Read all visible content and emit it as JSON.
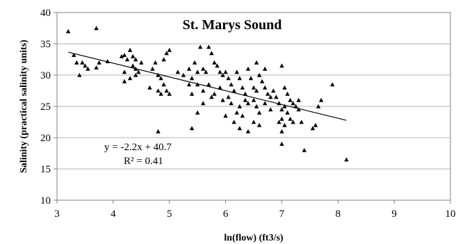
{
  "chart_data": {
    "type": "scatter",
    "title": "St. Marys Sound",
    "xlabel": "ln(flow) (ft3/s)",
    "ylabel": "Salinity (practical salinity units)",
    "xlim": [
      3,
      10
    ],
    "ylim": [
      10,
      40
    ],
    "xticks": [
      "3",
      "4",
      "5",
      "6",
      "7",
      "8",
      "9",
      "10"
    ],
    "yticks": [
      "10",
      "15",
      "20",
      "25",
      "30",
      "35",
      "40"
    ],
    "grid": "horizontal",
    "marker": "triangle",
    "colors": {
      "points": "#000000",
      "trendline": "#000000",
      "grid": "#b0b0b0",
      "frame": "#808080"
    },
    "trendline": {
      "slope": -2.2,
      "intercept": 40.7,
      "x_range": [
        3.2,
        8.15
      ]
    },
    "annotations": {
      "equation": "y = -2.2x + 40.7",
      "r_squared": "R² = 0.41"
    },
    "points": [
      [
        3.2,
        37.0
      ],
      [
        3.7,
        37.5
      ],
      [
        3.3,
        33.2
      ],
      [
        3.35,
        32.0
      ],
      [
        3.4,
        30.0
      ],
      [
        3.45,
        32.0
      ],
      [
        3.5,
        31.5
      ],
      [
        3.55,
        31.0
      ],
      [
        3.7,
        31.2
      ],
      [
        3.75,
        32.0
      ],
      [
        3.9,
        32.2
      ],
      [
        4.15,
        33.0
      ],
      [
        4.2,
        33.2
      ],
      [
        4.25,
        32.5
      ],
      [
        4.3,
        34.0
      ],
      [
        4.35,
        33.0
      ],
      [
        4.35,
        31.5
      ],
      [
        4.4,
        32.5
      ],
      [
        4.2,
        30.5
      ],
      [
        4.2,
        29.0
      ],
      [
        4.3,
        29.5
      ],
      [
        4.4,
        30.0
      ],
      [
        4.4,
        31.0
      ],
      [
        4.45,
        30.5
      ],
      [
        4.5,
        32.0
      ],
      [
        4.7,
        31.0
      ],
      [
        4.75,
        32.0
      ],
      [
        4.8,
        30.0
      ],
      [
        4.85,
        29.5
      ],
      [
        4.9,
        32.5
      ],
      [
        4.95,
        33.5
      ],
      [
        5.0,
        34.0
      ],
      [
        4.65,
        28.0
      ],
      [
        4.8,
        27.5
      ],
      [
        4.85,
        27.0
      ],
      [
        4.9,
        28.5
      ],
      [
        4.95,
        27.5
      ],
      [
        5.0,
        27.0
      ],
      [
        4.8,
        21.0
      ],
      [
        5.15,
        30.5
      ],
      [
        5.25,
        30.0
      ],
      [
        5.35,
        31.0
      ],
      [
        5.4,
        29.5
      ],
      [
        5.45,
        32.0
      ],
      [
        5.5,
        30.5
      ],
      [
        5.55,
        34.5
      ],
      [
        5.6,
        31.0
      ],
      [
        5.65,
        30.5
      ],
      [
        5.7,
        34.5
      ],
      [
        5.75,
        33.5
      ],
      [
        5.8,
        32.0
      ],
      [
        5.85,
        31.5
      ],
      [
        5.9,
        30.5
      ],
      [
        5.95,
        30.0
      ],
      [
        5.35,
        28.5
      ],
      [
        5.4,
        27.0
      ],
      [
        5.5,
        28.5
      ],
      [
        5.6,
        27.5
      ],
      [
        5.7,
        28.5
      ],
      [
        5.8,
        27.0
      ],
      [
        5.9,
        28.0
      ],
      [
        5.95,
        26.0
      ],
      [
        5.4,
        21.5
      ],
      [
        5.5,
        24.0
      ],
      [
        5.6,
        25.5
      ],
      [
        5.75,
        26.5
      ],
      [
        6.0,
        30.5
      ],
      [
        6.05,
        29.5
      ],
      [
        6.1,
        28.5
      ],
      [
        6.15,
        27.5
      ],
      [
        6.2,
        30.5
      ],
      [
        6.25,
        29.5
      ],
      [
        6.3,
        28.0
      ],
      [
        6.35,
        27.0
      ],
      [
        6.4,
        31.0
      ],
      [
        6.45,
        29.5
      ],
      [
        6.5,
        28.0
      ],
      [
        6.55,
        27.5
      ],
      [
        6.6,
        30.0
      ],
      [
        6.65,
        29.0
      ],
      [
        6.7,
        28.0
      ],
      [
        6.75,
        27.0
      ],
      [
        6.8,
        26.5
      ],
      [
        6.05,
        26.5
      ],
      [
        6.1,
        25.5
      ],
      [
        6.2,
        24.0
      ],
      [
        6.25,
        25.0
      ],
      [
        6.3,
        23.5
      ],
      [
        6.35,
        26.0
      ],
      [
        6.4,
        25.5
      ],
      [
        6.5,
        26.0
      ],
      [
        6.55,
        25.0
      ],
      [
        6.6,
        24.0
      ],
      [
        6.7,
        25.5
      ],
      [
        6.8,
        24.5
      ],
      [
        6.0,
        23.5
      ],
      [
        6.15,
        22.5
      ],
      [
        6.25,
        21.5
      ],
      [
        6.4,
        21.0
      ],
      [
        6.5,
        22.5
      ],
      [
        6.6,
        22.0
      ],
      [
        6.55,
        32.0
      ],
      [
        6.7,
        31.0
      ],
      [
        6.85,
        27.5
      ],
      [
        6.9,
        26.5
      ],
      [
        6.95,
        25.5
      ],
      [
        7.0,
        31.5
      ],
      [
        7.05,
        28.0
      ],
      [
        7.1,
        27.0
      ],
      [
        7.15,
        26.0
      ],
      [
        7.2,
        25.5
      ],
      [
        7.25,
        25.0
      ],
      [
        7.3,
        26.0
      ],
      [
        7.0,
        24.5
      ],
      [
        7.05,
        25.0
      ],
      [
        7.1,
        24.0
      ],
      [
        7.15,
        23.0
      ],
      [
        7.0,
        23.0
      ],
      [
        7.05,
        22.0
      ],
      [
        7.0,
        21.0
      ],
      [
        7.0,
        19.0
      ],
      [
        7.3,
        24.5
      ],
      [
        7.35,
        22.5
      ],
      [
        7.4,
        18.0
      ],
      [
        7.55,
        21.5
      ],
      [
        7.6,
        22.0
      ],
      [
        7.65,
        25.0
      ],
      [
        7.7,
        26.0
      ],
      [
        7.9,
        28.5
      ],
      [
        8.15,
        16.5
      ],
      [
        6.95,
        22.5
      ],
      [
        7.2,
        22.5
      ]
    ]
  }
}
